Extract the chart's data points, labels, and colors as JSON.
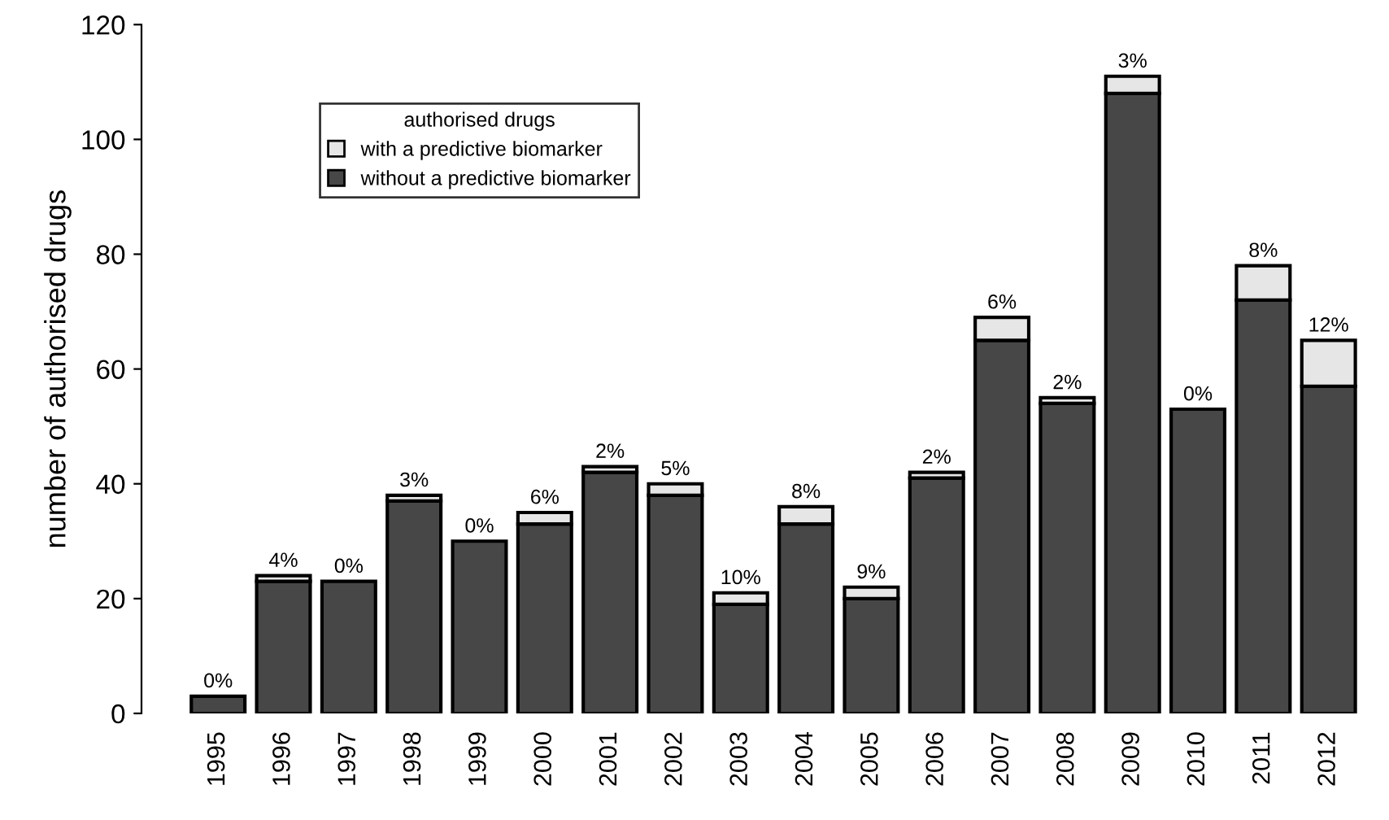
{
  "chart_data": {
    "type": "bar",
    "stacked": true,
    "ylabel": "number of authorised drugs",
    "legend_title": "authorised drugs",
    "legend": "top left",
    "categories": [
      "1995",
      "1996",
      "1997",
      "1998",
      "1999",
      "2000",
      "2001",
      "2002",
      "2003",
      "2004",
      "2005",
      "2006",
      "2007",
      "2008",
      "2009",
      "2010",
      "2011",
      "2012"
    ],
    "series": [
      {
        "name": "without a predictive biomarker",
        "color": "#474747",
        "values": [
          3,
          23,
          23,
          37,
          30,
          33,
          42,
          38,
          19,
          33,
          20,
          41,
          65,
          54,
          108,
          53,
          72,
          57
        ]
      },
      {
        "name": "with a predictive biomarker",
        "color": "#e6e6e6",
        "values": [
          0,
          1,
          0,
          1,
          0,
          2,
          1,
          2,
          2,
          3,
          2,
          1,
          4,
          1,
          3,
          0,
          6,
          8
        ]
      }
    ],
    "annotations": [
      {
        "text": "0%",
        "x": "1995",
        "y": 3
      },
      {
        "text": "4%",
        "x": "1996",
        "y": 24
      },
      {
        "text": "0%",
        "x": "1997",
        "y": 23
      },
      {
        "text": "3%",
        "x": "1998",
        "y": 38
      },
      {
        "text": "0%",
        "x": "1999",
        "y": 30
      },
      {
        "text": "6%",
        "x": "2000",
        "y": 35
      },
      {
        "text": "2%",
        "x": "2001",
        "y": 43
      },
      {
        "text": "5%",
        "x": "2002",
        "y": 40
      },
      {
        "text": "10%",
        "x": "2003",
        "y": 21
      },
      {
        "text": "8%",
        "x": "2004",
        "y": 36
      },
      {
        "text": "9%",
        "x": "2005",
        "y": 22
      },
      {
        "text": "2%",
        "x": "2006",
        "y": 42
      },
      {
        "text": "6%",
        "x": "2007",
        "y": 69
      },
      {
        "text": "2%",
        "x": "2008",
        "y": 55
      },
      {
        "text": "3%",
        "x": "2009",
        "y": 111
      },
      {
        "text": "0%",
        "x": "2010",
        "y": 53
      },
      {
        "text": "8%",
        "x": "2011",
        "y": 78
      },
      {
        "text": "12%",
        "x": "2012",
        "y": 65
      }
    ],
    "ylim": [
      0,
      120
    ],
    "yticks": [
      0,
      20,
      40,
      60,
      80,
      100,
      120
    ],
    "grid": false
  }
}
